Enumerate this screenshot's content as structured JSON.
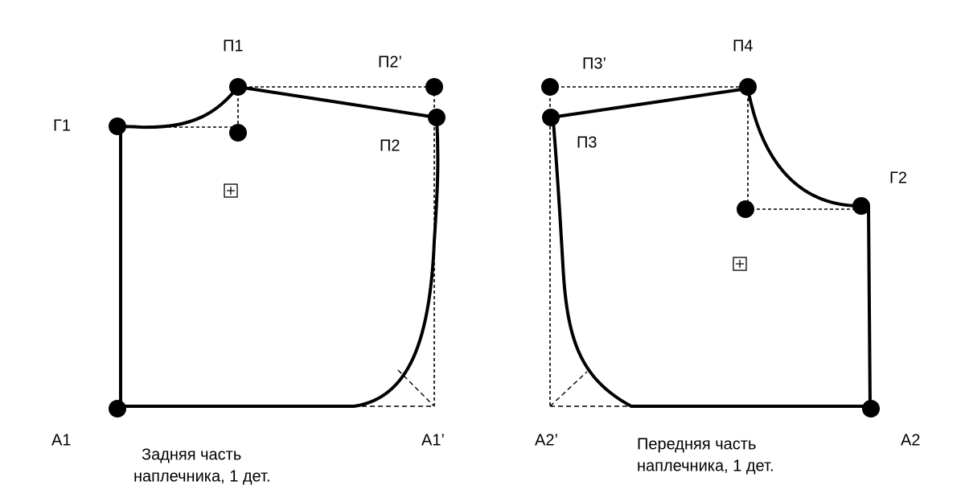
{
  "pieces": [
    {
      "points": [
        "П1",
        "П2’",
        "Г1",
        "П2",
        "А1",
        "А1’"
      ],
      "caption": [
        "Задняя часть",
        "наплечника, 1 дет."
      ]
    },
    {
      "points": [
        "П3’",
        "П4",
        "П3",
        "Г2",
        "А2’",
        "А2"
      ],
      "caption": [
        "Передняя часть",
        "наплечника, 1 дет."
      ]
    }
  ]
}
